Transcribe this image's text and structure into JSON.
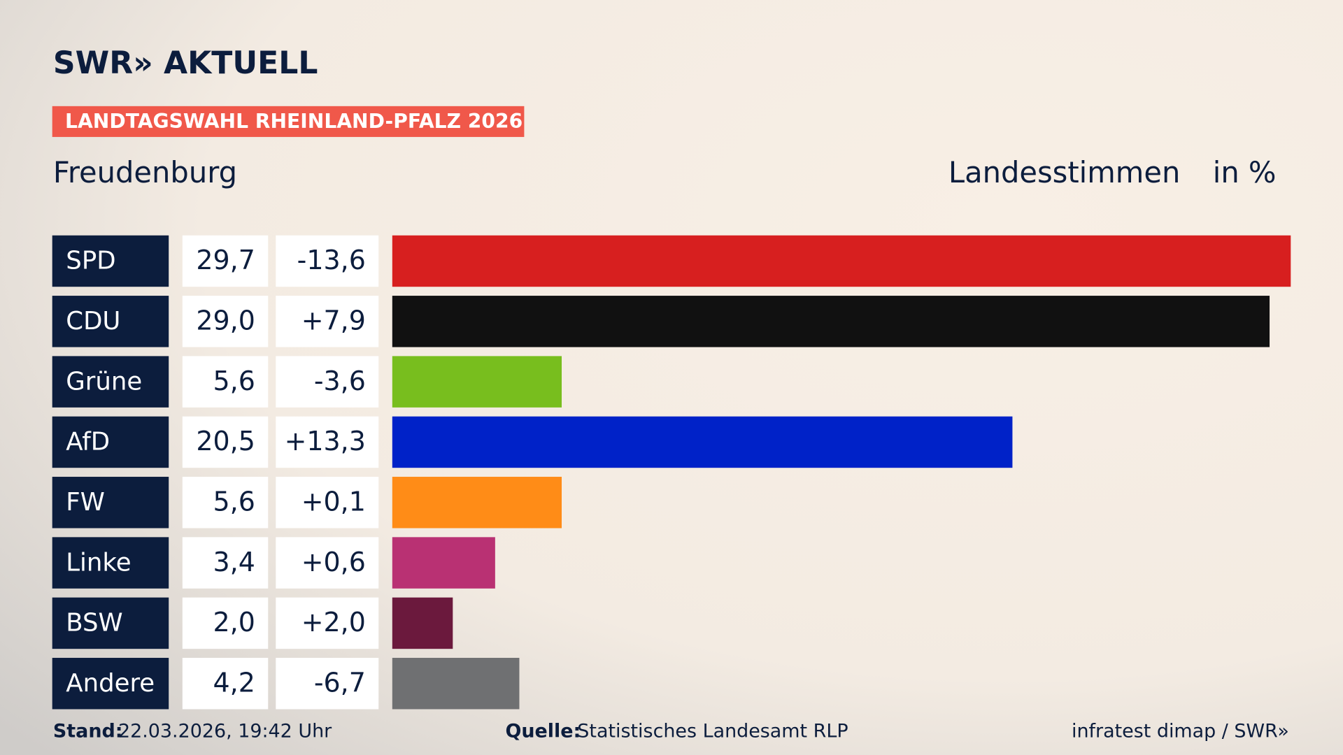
{
  "chart_data": {
    "type": "bar",
    "brand": "SWR» AKTUELL",
    "banner": "LANDTAGSWAHL RHEINLAND-PFALZ 2026",
    "title": "Freudenburg",
    "subtitle": "Landesstimmen",
    "unit": "in %",
    "categories": [
      "SPD",
      "CDU",
      "Grüne",
      "AfD",
      "FW",
      "Linke",
      "BSW",
      "Andere"
    ],
    "values": [
      29.7,
      29.0,
      5.6,
      20.5,
      5.6,
      3.4,
      2.0,
      4.2
    ],
    "value_labels": [
      "29,7",
      "29,0",
      "5,6",
      "20,5",
      "5,6",
      "3,4",
      "2,0",
      "4,2"
    ],
    "changes": [
      "-13,6",
      "+7,9",
      "-3,6",
      "+13,3",
      "+0,1",
      "+0,6",
      "+2,0",
      "-6,7"
    ],
    "colors": [
      "#d71f1f",
      "#111111",
      "#78be1e",
      "#0022c8",
      "#ff8c17",
      "#b93173",
      "#6b193d",
      "#6f7072"
    ],
    "stand_label": "Stand:",
    "stand": "22.03.2026, 19:42 Uhr",
    "source_label": "Quelle:",
    "source": "Statistisches Landesamt RLP",
    "credit": "infratest dimap / SWR»"
  }
}
